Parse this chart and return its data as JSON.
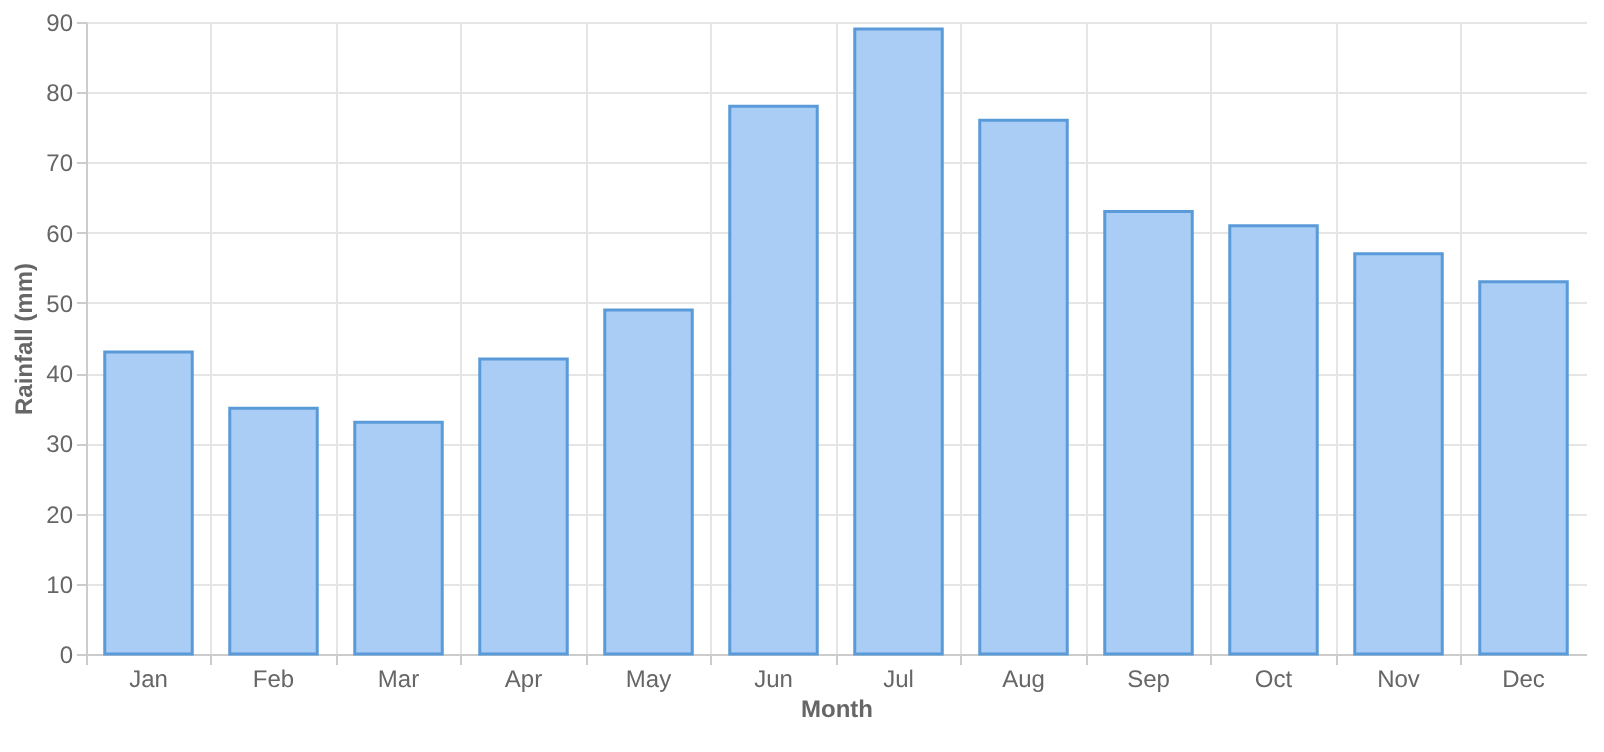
{
  "chart_data": {
    "type": "bar",
    "xlabel": "Month",
    "ylabel": "Rainfall (mm)",
    "categories": [
      "Jan",
      "Feb",
      "Mar",
      "Apr",
      "May",
      "Jun",
      "Jul",
      "Aug",
      "Sep",
      "Oct",
      "Nov",
      "Dec"
    ],
    "values": [
      43,
      35,
      33,
      42,
      49,
      78,
      89,
      76,
      63,
      61,
      57,
      53
    ],
    "color": "#a9cdf4",
    "ylim": [
      0,
      90
    ],
    "yticks": [
      0,
      10,
      20,
      30,
      40,
      50,
      60,
      70,
      80,
      90
    ],
    "grid": true
  }
}
